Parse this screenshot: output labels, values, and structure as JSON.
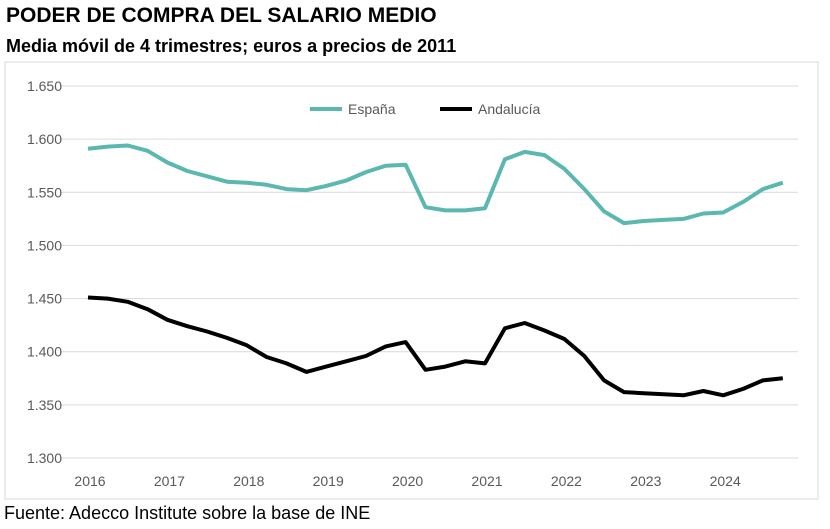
{
  "title": "PODER DE COMPRA DEL SALARIO MEDIO",
  "subtitle": "Media móvil de 4 trimestres; euros a precios de 2011",
  "source": "Fuente: Adecco Institute sobre la base de INE",
  "chart_data": {
    "type": "line",
    "title": "PODER DE COMPRA DEL SALARIO MEDIO",
    "subtitle": "Media móvil de 4 trimestres; euros a precios de 2011",
    "x_frequency": "quarterly",
    "x_start": "2016",
    "x_tick_labels": [
      "2016",
      "2017",
      "2018",
      "2019",
      "2020",
      "2021",
      "2022",
      "2023",
      "2024"
    ],
    "y_tick_labels": [
      "1.300",
      "1.350",
      "1.400",
      "1.450",
      "1.500",
      "1.550",
      "1.600",
      "1.650"
    ],
    "ylim": [
      1300,
      1650
    ],
    "grid": true,
    "legend_position": "top-center",
    "series": [
      {
        "name": "España",
        "color": "#5BB8B0",
        "values": [
          1591,
          1593,
          1594,
          1589,
          1578,
          1570,
          1565,
          1560,
          1559,
          1557,
          1553,
          1552,
          1556,
          1561,
          1569,
          1575,
          1576,
          1536,
          1533,
          1533,
          1535,
          1581,
          1588,
          1585,
          1572,
          1553,
          1532,
          1521,
          1523,
          1524,
          1525,
          1530,
          1531,
          1541,
          1553,
          1559
        ]
      },
      {
        "name": "Andalucía",
        "color": "#000000",
        "values": [
          1451,
          1450,
          1447,
          1440,
          1430,
          1424,
          1419,
          1413,
          1406,
          1395,
          1389,
          1381,
          1386,
          1391,
          1396,
          1405,
          1409,
          1383,
          1386,
          1391,
          1389,
          1422,
          1427,
          1420,
          1412,
          1396,
          1373,
          1362,
          1361,
          1360,
          1359,
          1363,
          1359,
          1365,
          1373,
          1375
        ]
      }
    ]
  }
}
